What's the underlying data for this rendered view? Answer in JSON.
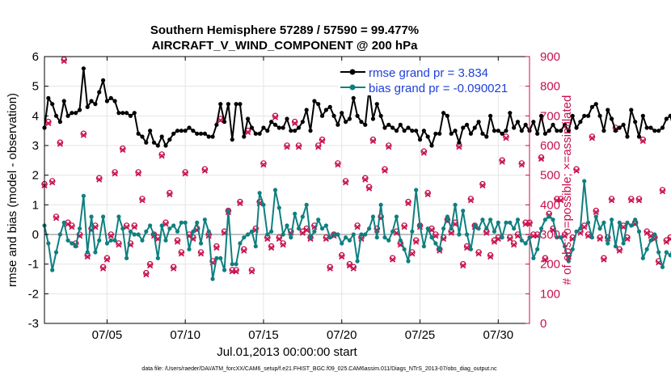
{
  "chart_data": {
    "type": "line",
    "title_line1": "Southern Hemisphere 57289 / 57590 = 99.477%",
    "title_line2": "AIRCRAFT_V_WIND_COMPONENT @ 200 hPa",
    "xlabel": "Jul.01,2013 00:00:00 start",
    "ylabel": "rmse and bias (model - observation)",
    "ylabel_right": "# of obs: o=possible; ×=assimilated",
    "footer": "data file: /Users/raeder/DAI/ATM_forcXX/CAM6_setup/f.e21.FHIST_BGC.f09_025.CAM6assim.011/Diags_NTrS_2013-07/obs_diag_output.nc",
    "xlim": [
      1,
      32
    ],
    "ylim": [
      -3,
      6
    ],
    "ylim_right": [
      0,
      900
    ],
    "x_ticks": [
      5,
      10,
      15,
      20,
      25,
      30
    ],
    "x_tick_labels": [
      "07/05",
      "07/10",
      "07/15",
      "07/20",
      "07/25",
      "07/30"
    ],
    "y_ticks": [
      -3,
      -2,
      -1,
      0,
      1,
      2,
      3,
      4,
      5,
      6
    ],
    "y_tick_labels": [
      "-3",
      "-2",
      "-1",
      "0",
      "1",
      "2",
      "3",
      "4",
      "5",
      "6"
    ],
    "y_right_ticks": [
      0,
      100,
      200,
      300,
      400,
      500,
      600,
      700,
      800,
      900
    ],
    "y_right_tick_labels": [
      "0",
      "100",
      "200",
      "300",
      "400",
      "500",
      "600",
      "700",
      "800",
      "900"
    ],
    "legend": [
      {
        "label": "rmse grand pr = 3.834",
        "color": "#000000"
      },
      {
        "label": "bias grand pr = -0.090021",
        "color": "#0f7f80"
      }
    ],
    "colors": {
      "rmse": "#000000",
      "bias": "#0f7f80",
      "obs": "#c8104c",
      "zero_line": "#c0c0c0"
    },
    "time_step_days": 0.25,
    "series": [
      {
        "name": "rmse",
        "values": [
          3.6,
          4.6,
          4.4,
          4.0,
          3.8,
          4.5,
          4.0,
          4.1,
          4.1,
          4.2,
          5.6,
          4.3,
          4.5,
          4.4,
          4.8,
          5.2,
          4.5,
          4.6,
          4.5,
          4.1,
          4.1,
          4.1,
          4.0,
          4.1,
          3.4,
          3.3,
          3.1,
          3.5,
          3.1,
          3.0,
          3.3,
          3.0,
          3.2,
          3.4,
          3.5,
          3.5,
          3.5,
          3.6,
          3.5,
          3.4,
          3.4,
          3.4,
          3.3,
          3.3,
          3.7,
          4.4,
          3.8,
          4.4,
          3.2,
          4.4,
          4.4,
          3.3,
          3.9,
          3.6,
          3.4,
          3.4,
          3.6,
          3.5,
          3.8,
          3.7,
          3.6,
          3.6,
          3.9,
          3.5,
          3.5,
          3.6,
          3.8,
          4.2,
          3.5,
          4.5,
          4.4,
          4.0,
          4.2,
          4.3,
          4.0,
          3.7,
          4.1,
          3.8,
          3.9,
          4.6,
          4.0,
          3.8,
          3.7,
          4.9,
          3.9,
          4.4,
          4.0,
          3.6,
          3.7,
          3.6,
          3.5,
          3.7,
          3.5,
          3.6,
          3.5,
          3.5,
          3.2,
          3.5,
          3.3,
          3.0,
          3.4,
          3.4,
          4.1,
          4.0,
          3.4,
          3.5,
          3.1,
          3.6,
          3.7,
          3.4,
          3.6,
          3.8,
          3.4,
          3.3,
          4.0,
          3.5,
          3.5,
          3.4,
          3.5,
          4.1,
          3.6,
          3.8,
          3.5,
          3.7,
          3.5,
          3.8,
          3.4,
          4.0,
          3.4,
          3.5,
          3.7,
          3.5,
          3.5,
          3.7,
          3.5,
          4.0,
          3.6,
          3.8,
          4.0,
          4.0,
          4.3,
          4.4,
          4.0,
          3.5,
          4.2,
          3.9,
          3.5,
          3.6,
          3.7,
          3.3,
          4.2,
          3.8,
          3.3,
          4.0,
          3.6,
          3.6,
          3.5,
          3.5,
          3.6,
          3.9,
          4.0,
          3.5,
          3.6,
          3.5,
          3.7,
          3.6,
          3.4,
          4.0,
          3.5,
          3.5,
          3.8,
          3.6,
          3.6,
          3.8,
          3.6,
          4.1,
          3.5,
          3.8,
          4.0,
          3.7,
          3.6,
          3.5,
          3.6,
          3.4,
          3.8,
          3.4,
          3.9,
          3.8,
          3.8,
          3.7,
          3.5,
          3.5,
          3.5,
          3.6,
          3.4,
          3.6,
          3.9,
          4.5,
          4.0,
          4.2,
          4.2,
          3.5,
          3.9,
          4.1,
          3.5,
          4.0,
          3.9,
          3.9,
          3.8,
          3.6,
          3.7,
          3.7,
          3.8,
          3.6,
          3.4,
          4.4,
          4.0,
          3.5,
          3.8,
          3.6,
          3.6,
          3.9,
          3.6,
          4.1,
          3.6,
          3.6,
          3.8,
          3.9,
          3.6,
          3.6,
          3.5,
          3.9,
          3.5,
          3.8,
          3.8,
          3.7,
          4.6,
          3.9,
          4.1,
          3.7,
          3.6,
          4.0,
          3.8,
          3.4,
          3.6,
          3.6,
          3.9,
          3.6,
          3.7,
          3.6,
          3.5,
          3.9,
          3.6,
          3.7,
          3.4,
          4.0,
          3.6,
          3.6,
          3.6,
          3.5,
          3.6,
          3.3,
          3.7,
          3.7,
          3.6,
          3.6,
          3.7,
          4.0,
          3.6,
          3.5,
          3.7,
          3.6,
          3.7,
          3.6,
          3.5,
          3.6,
          3.6,
          3.5,
          3.5,
          3.6,
          3.5,
          4.1,
          3.6,
          4.7,
          4.0
        ]
      },
      {
        "name": "bias",
        "values": [
          0.3,
          -0.3,
          -1.2,
          -0.6,
          0.0,
          0.4,
          -0.2,
          -0.3,
          -0.4,
          0.2,
          1.3,
          -0.6,
          0.6,
          -0.6,
          -0.2,
          0.6,
          -0.3,
          -0.2,
          -0.2,
          0.6,
          0.2,
          -0.8,
          0.1,
          0.0,
          0.0,
          -0.2,
          0.1,
          0.3,
          0.0,
          -0.8,
          0.3,
          -0.2,
          0.2,
          0.3,
          0.1,
          0.4,
          0.4,
          -0.5,
          0.1,
          0.4,
          -0.3,
          0.5,
          0.1,
          -1.5,
          -0.8,
          -0.8,
          -1.2,
          0.8,
          -1.0,
          -1.0,
          -0.3,
          -0.1,
          0.0,
          0.1,
          -0.4,
          1.4,
          1.0,
          0.0,
          0.1,
          1.5,
          0.9,
          0.0,
          0.3,
          -0.1,
          0.7,
          0.2,
          0.6,
          1.0,
          -0.1,
          0.1,
          0.5,
          0.2,
          0.3,
          -0.1,
          0.0,
          0.0,
          -0.3,
          -0.1,
          -0.2,
          0.0,
          -0.9,
          0.0,
          0.0,
          0.2,
          0.6,
          -0.1,
          1.0,
          -0.1,
          -0.2,
          0.1,
          0.6,
          -0.2,
          -0.5,
          -0.9,
          0.1,
          1.5,
          0.3,
          -0.4,
          0.2,
          -0.1,
          -0.3,
          -0.5,
          0.2,
          0.6,
          0.2,
          1.0,
          0.0,
          0.8,
          0.0,
          -0.5,
          0.3,
          0.2,
          0.5,
          0.2,
          0.5,
          0.1,
          0.4,
          -0.1,
          0.4,
          0.4,
          0.2,
          0.5,
          -0.2,
          -0.3,
          -0.1,
          -0.8,
          -0.5,
          0.2,
          0.5,
          0.6,
          0.5,
          -0.1,
          -0.1,
          -0.4,
          -0.9,
          -0.5,
          0.1,
          0.2,
          1.8,
          0.4,
          -0.1,
          0.6,
          0.2,
          0.4,
          -0.3,
          0.5,
          -0.4,
          0.4,
          -0.3,
          0.4,
          0.3,
          0.5,
          0.1,
          -0.8,
          -0.5,
          -0.2,
          0.0,
          -0.6,
          -1.1,
          -0.6,
          -0.7,
          -0.3,
          -1.6,
          -1.0,
          -0.8,
          0.3,
          -0.3,
          -0.2,
          0.2,
          -0.1,
          0.0,
          -0.5,
          0.0,
          -0.9,
          0.3,
          0.4,
          -0.2,
          0.3,
          -0.3,
          -0.5,
          -0.4,
          -0.9,
          0.5,
          0.2,
          0.0,
          -0.2,
          0.3,
          -0.3,
          -0.4,
          -0.6,
          -0.8,
          -1.1,
          0.2,
          0.1,
          0.3,
          0.4,
          0.0,
          0.5,
          -0.1,
          -0.2,
          -0.4,
          -0.9,
          0.6,
          -0.2,
          0.3,
          -0.1,
          0.5,
          -0.1,
          -0.1,
          -0.1,
          -0.2,
          0.2,
          -0.3,
          -0.7,
          0.0,
          -0.6,
          -0.7,
          -0.6,
          -0.6,
          -1.4,
          -1.3,
          -0.2,
          -0.3,
          0.1,
          -1.5,
          -0.7,
          -0.1,
          0.1,
          -1.1,
          -0.6,
          -1.3,
          -1.6,
          -2.0,
          -1.1,
          -0.8,
          -1.0,
          -0.5,
          -0.3,
          -1.3,
          -0.1,
          -0.2,
          -1.6,
          -0.4,
          -0.5,
          -0.5,
          -0.5,
          0.3,
          -0.5,
          -0.2,
          0.0,
          -0.4,
          -0.5,
          0.1,
          -0.5,
          0.6,
          -0.1,
          -0.2,
          -0.3,
          0.0,
          0.3,
          -0.7,
          -0.3,
          0.0,
          0.1,
          -0.4,
          0.2,
          -0.4,
          0.2,
          0.3,
          0.1,
          0.1,
          -0.3,
          -0.5,
          0.8,
          -0.1,
          0.0,
          -0.2,
          -0.5,
          -0.4,
          -1.7,
          0.5
        ]
      },
      {
        "name": "obs_possible",
        "values": [
          470,
          680,
          480,
          360,
          610,
          890,
          340,
          330,
          270,
          300,
          640,
          230,
          320,
          330,
          490,
          190,
          220,
          300,
          510,
          270,
          590,
          330,
          270,
          330,
          510,
          420,
          170,
          200,
          300,
          290,
          570,
          340,
          440,
          190,
          280,
          240,
          510,
          300,
          290,
          320,
          240,
          520,
          300,
          210,
          260,
          690,
          310,
          380,
          180,
          180,
          410,
          250,
          650,
          180,
          320,
          410,
          540,
          290,
          260,
          700,
          290,
          270,
          600,
          310,
          680,
          600,
          310,
          320,
          290,
          330,
          600,
          620,
          290,
          190,
          300,
          540,
          230,
          480,
          200,
          190,
          330,
          290,
          490,
          460,
          620,
          320,
          360,
          520,
          600,
          220,
          310,
          270,
          330,
          410,
          240,
          280,
          330,
          580,
          440,
          320,
          300,
          250,
          290,
          350,
          310,
          340,
          600,
          200,
          260,
          420,
          330,
          240,
          470,
          310,
          230,
          280,
          290,
          550,
          630,
          290,
          270,
          300,
          540,
          340,
          340,
          300,
          300,
          560,
          220,
          370,
          320,
          420,
          420,
          300,
          230,
          290,
          520,
          310,
          330,
          300,
          630,
          380,
          290,
          220,
          290,
          420,
          660,
          250,
          330,
          290,
          420,
          340,
          420,
          620,
          310,
          300,
          290,
          210,
          450,
          280,
          290,
          240,
          700,
          660,
          280,
          640,
          620,
          300,
          320,
          340,
          250,
          290,
          560,
          240,
          340,
          290,
          360,
          410,
          690,
          500,
          470,
          510,
          330,
          230,
          270,
          590,
          310,
          280,
          420,
          350,
          480,
          700,
          410,
          300,
          270,
          330,
          450,
          350,
          580,
          480,
          300,
          420,
          290,
          290,
          360,
          350,
          570,
          380,
          680,
          290,
          240,
          690,
          420,
          250,
          290,
          280,
          290,
          330,
          480,
          350,
          300,
          690,
          270,
          580,
          290,
          260,
          610,
          300,
          250,
          300,
          320,
          300,
          290,
          330,
          580,
          330,
          300,
          410,
          320,
          280,
          620,
          290,
          680,
          280,
          310,
          630,
          290,
          580,
          330,
          310,
          220,
          600,
          280,
          290,
          390,
          320,
          600,
          270,
          310,
          300,
          250,
          690,
          330,
          400,
          290,
          310,
          390,
          0,
          400
        ]
      },
      {
        "name": "obs_assimilated",
        "values": [
          465,
          675,
          475,
          355,
          605,
          885,
          335,
          325,
          265,
          295,
          635,
          225,
          315,
          325,
          485,
          185,
          215,
          295,
          505,
          265,
          585,
          325,
          265,
          325,
          505,
          415,
          165,
          195,
          295,
          285,
          565,
          335,
          435,
          185,
          275,
          235,
          505,
          295,
          285,
          315,
          235,
          515,
          295,
          205,
          255,
          685,
          305,
          375,
          175,
          175,
          405,
          245,
          645,
          175,
          315,
          405,
          535,
          285,
          255,
          695,
          285,
          265,
          595,
          305,
          675,
          595,
          305,
          315,
          285,
          325,
          595,
          615,
          285,
          185,
          295,
          535,
          225,
          475,
          195,
          185,
          325,
          285,
          485,
          455,
          615,
          315,
          355,
          515,
          595,
          215,
          305,
          265,
          325,
          405,
          235,
          275,
          325,
          575,
          435,
          315,
          295,
          245,
          285,
          345,
          305,
          335,
          595,
          195,
          255,
          415,
          325,
          235,
          465,
          305,
          225,
          275,
          285,
          545,
          625,
          285,
          265,
          295,
          535,
          335,
          335,
          295,
          295,
          555,
          215,
          365,
          315,
          415,
          415,
          295,
          225,
          285,
          515,
          305,
          325,
          295,
          625,
          375,
          285,
          215,
          285,
          415,
          655,
          245,
          325,
          285,
          415,
          335,
          415,
          615,
          305,
          295,
          285,
          205,
          445,
          275,
          285,
          235,
          695,
          655,
          275,
          635,
          615,
          295,
          315,
          335,
          245,
          285,
          555,
          235,
          335,
          285,
          355,
          405,
          685,
          495,
          465,
          505,
          325,
          225,
          265,
          585,
          305,
          275,
          415,
          345,
          475,
          695,
          405,
          295,
          265,
          325,
          445,
          345,
          575,
          475,
          295,
          415,
          285,
          285,
          355,
          345,
          565,
          375,
          675,
          285,
          235,
          685,
          415,
          245,
          285,
          275,
          285,
          325,
          475,
          345,
          295,
          685,
          265,
          575,
          285,
          255,
          605,
          295,
          245,
          295,
          315,
          295,
          285,
          325,
          575,
          325,
          295,
          405,
          315,
          275,
          615,
          285,
          675,
          275,
          305,
          625,
          285,
          575,
          325,
          305,
          215,
          595,
          275,
          285,
          385,
          315,
          595,
          265,
          305,
          295,
          245,
          685,
          325,
          395,
          285,
          305,
          385,
          0,
          395
        ]
      }
    ]
  }
}
